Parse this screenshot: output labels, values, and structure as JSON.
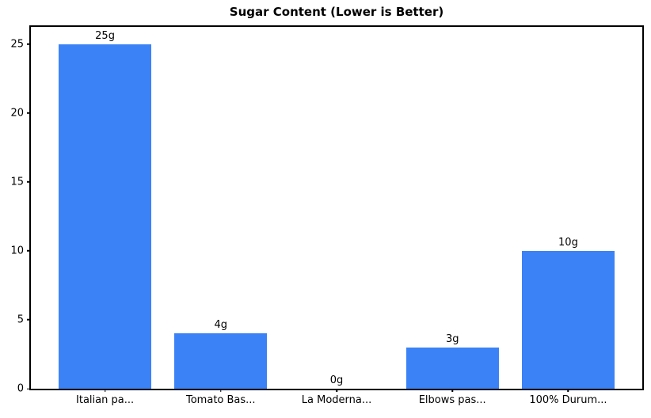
{
  "chart_data": {
    "type": "bar",
    "title": "Sugar Content (Lower is Better)",
    "categories": [
      "Italian pa...",
      "Tomato Bas...",
      "La Moderna...",
      "Elbows pas...",
      "100% Durum..."
    ],
    "values": [
      25,
      4,
      0,
      3,
      10
    ],
    "value_labels": [
      "25g",
      "4g",
      "0g",
      "3g",
      "10g"
    ],
    "y_ticks": [
      0,
      5,
      10,
      15,
      20,
      25
    ],
    "ylim": [
      0,
      26.25
    ],
    "bar_color": "#3b82f6",
    "bar_width_ratio": 0.8,
    "x_margin": 0.24,
    "axis_color": "#000000",
    "text_color": "#000000",
    "background_color": "#ffffff",
    "grid": false,
    "legend_position": "none",
    "xlabel": "",
    "ylabel": ""
  }
}
